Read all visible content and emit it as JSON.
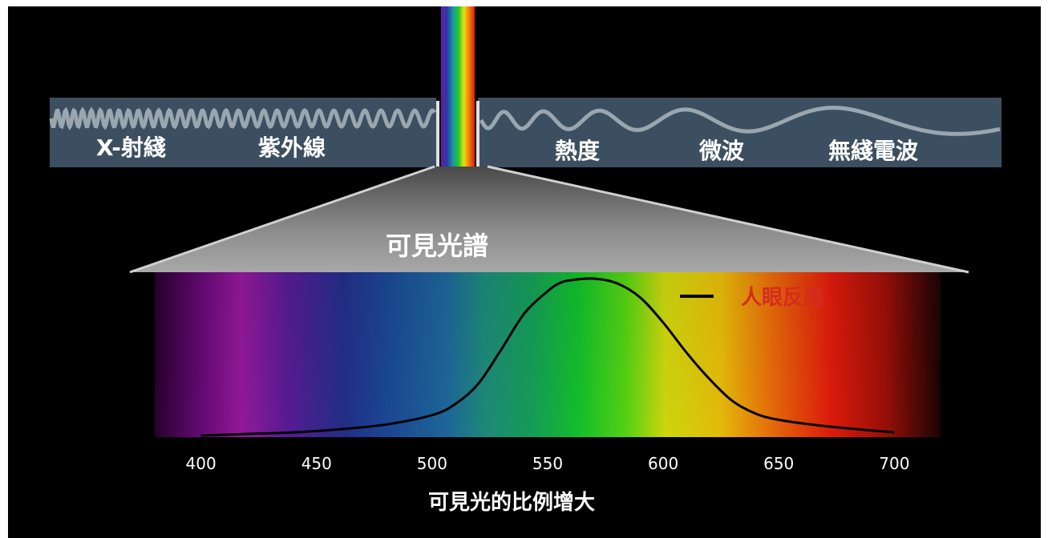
{
  "spectrum_bar": {
    "labels": [
      "X-射綫",
      "紫外線",
      "熱度",
      "微波",
      "無綫電波"
    ]
  },
  "visible_title": "可見光譜",
  "legend": {
    "label": "人眼反應",
    "line_color": "#000000",
    "text_color": "#d62b1f"
  },
  "x_axis": {
    "ticks": [
      "400",
      "450",
      "500",
      "550",
      "600",
      "650",
      "700"
    ],
    "caption": "可見光的比例增大"
  },
  "chart_data": {
    "type": "line",
    "series": [
      {
        "name": "人眼反應",
        "x": [
          400,
          420,
          440,
          460,
          480,
          500,
          510,
          520,
          530,
          540,
          550,
          555,
          560,
          570,
          580,
          590,
          600,
          610,
          620,
          630,
          640,
          650,
          670,
          700
        ],
        "y": [
          0.0,
          0.01,
          0.02,
          0.04,
          0.07,
          0.13,
          0.2,
          0.33,
          0.55,
          0.78,
          0.92,
          0.97,
          0.99,
          1.0,
          0.97,
          0.88,
          0.72,
          0.53,
          0.36,
          0.22,
          0.14,
          0.1,
          0.06,
          0.02
        ]
      }
    ],
    "xlim": [
      380,
      720
    ],
    "ylim": [
      0,
      1
    ],
    "xticks": [
      400,
      450,
      500,
      550,
      600,
      650,
      700
    ],
    "grid": false,
    "legend_position": "top-right"
  },
  "colors": {
    "background": "#000000",
    "bar_fill": "#3c4f60",
    "wave": "#9aa6b0",
    "cone": "#8f8f8f"
  }
}
